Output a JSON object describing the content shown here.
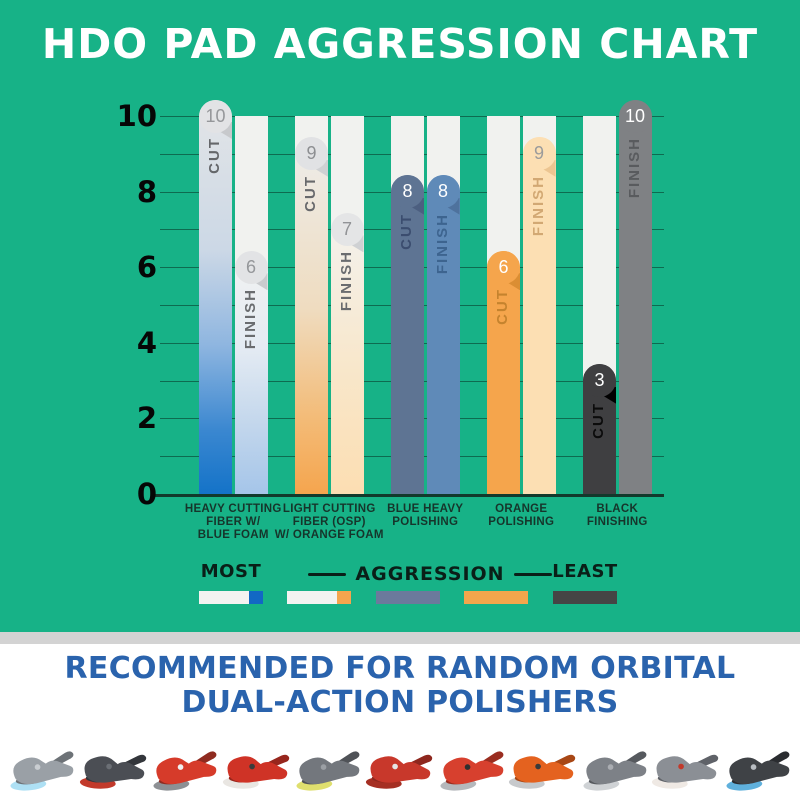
{
  "title": "HDO PAD AGGRESSION CHART",
  "chart_data": {
    "type": "bar",
    "categories": [
      [
        "HEAVY CUTTING",
        "FIBER W/",
        "BLUE FOAM"
      ],
      [
        "LIGHT CUTTING",
        "FIBER (OSP)",
        "W/ ORANGE FOAM"
      ],
      [
        "BLUE HEAVY",
        "POLISHING"
      ],
      [
        "ORANGE",
        "POLISHING"
      ],
      [
        "BLACK",
        "FINISHING"
      ]
    ],
    "series": [
      {
        "name": "CUT",
        "values": [
          10,
          9,
          8,
          6,
          3
        ]
      },
      {
        "name": "FINISH",
        "values": [
          6,
          7,
          8,
          9,
          10
        ]
      }
    ],
    "ylim": [
      0,
      10
    ],
    "yticks": [
      0,
      2,
      4,
      6,
      8,
      10
    ],
    "gridline_step": 1,
    "grid": true,
    "legend_position": "bottom",
    "bar_styles": [
      {
        "cut": {
          "gradient": [
            "#e3e5e7 0%",
            "#ccd8e6 38%",
            "#8fb6e0 62%",
            "#3a87d0 84%",
            "#1473c8 100%"
          ],
          "bubble_bg": "#e2e3e5",
          "bubble_text": "#95979a",
          "fold": "#c7c9cc",
          "label_color": "#65676a"
        },
        "finish": {
          "gradient": [
            "#f2f2f1 0%",
            "#e4ebf3 40%",
            "#c2d6ec 72%",
            "#a5c5e9 100%"
          ],
          "bubble_bg": "#e2e3e5",
          "bubble_text": "#95979a",
          "fold": "#c9cbce",
          "label_color": "#6a6c6f"
        }
      },
      {
        "cut": {
          "gradient": [
            "#ededeb 0%",
            "#efdcc0 48%",
            "#f3bc79 78%",
            "#f5a54e 100%"
          ],
          "bubble_bg": "#e1e2e4",
          "bubble_text": "#8d8f92",
          "fold": "#cfd1d3",
          "label_color": "#68696c"
        },
        "finish": {
          "gradient": [
            "#f3f2ef 0%",
            "#f8e7cb 55%",
            "#fcdeb2 100%"
          ],
          "bubble_bg": "#e4e5e6",
          "bubble_text": "#919396",
          "fold": "#cfd1d3",
          "label_color": "#6a6c6f"
        }
      },
      {
        "cut": {
          "fill": "#5e7493",
          "bubble_text": "#ffffff",
          "fold": "#4c5f80",
          "label_color": "#3b4d6f"
        },
        "finish": {
          "fill": "#5f8ab8",
          "bubble_text": "#ffffff",
          "fold": "#4e729d",
          "label_color": "#3d648f"
        }
      },
      {
        "cut": {
          "fill": "#f5a54c",
          "bubble_text": "#ffffff",
          "fold": "#db8e33",
          "label_color": "#c5832e"
        },
        "finish": {
          "fill": "#fcdfb3",
          "bubble_text": "#9b9b9b",
          "fold": "#ecc591",
          "label_color": "#d2a873"
        }
      },
      {
        "cut": {
          "fill": "#3f3f41",
          "bubble_text": "#ffffff",
          "fold": "#000000",
          "label_color": "#0b0b0b"
        },
        "finish": {
          "fill": "#7f8184",
          "bubble_text": "#ffffff",
          "fold": "",
          "label_color": "#595b5e"
        }
      }
    ]
  },
  "legend": {
    "most_label": "MOST",
    "aggression_label": "AGGRESSION",
    "least_label": "LEAST",
    "swatches": [
      {
        "base": "#f3f3f1",
        "tip": "#1268c4"
      },
      {
        "base": "#f3f3f1",
        "tip": "#f5a54e"
      },
      {
        "base": "#6b7a9c",
        "tip": ""
      },
      {
        "base": "#f3a64c",
        "tip": ""
      },
      {
        "base": "#454545",
        "tip": ""
      }
    ]
  },
  "footer": {
    "line1": "RECOMMENDED FOR RANDOM ORBITAL",
    "line2": "DUAL-ACTION POLISHERS",
    "text_color": "#2a63ad"
  },
  "colors": {
    "background_green": "#17b287",
    "gridline": "#0e6b50",
    "baseline": "#123a2c",
    "track": "#f1f2ef",
    "divider": "#d3d3d3",
    "title_text": "#ffffff",
    "axis_text": "#060606"
  },
  "polishers": [
    {
      "body": "#9aa0a6",
      "dark": "#6d7277",
      "pad": "#aee0f4",
      "accent": "#c9cdd1"
    },
    {
      "body": "#4b4e54",
      "dark": "#33363b",
      "pad": "#c23a2b",
      "accent": "#6b6f75"
    },
    {
      "body": "#d63b2a",
      "dark": "#8f2b20",
      "pad": "#8d9094",
      "accent": "#f0f0f0"
    },
    {
      "body": "#cf3326",
      "dark": "#97261d",
      "pad": "#e9e6e2",
      "accent": "#3c3c3c"
    },
    {
      "body": "#73777d",
      "dark": "#4f5257",
      "pad": "#dfdf6e",
      "accent": "#9b9fa4"
    },
    {
      "body": "#c8382b",
      "dark": "#8e271e",
      "pad": "#a52f23",
      "accent": "#e5e5e5"
    },
    {
      "body": "#d7402e",
      "dark": "#9a2d20",
      "pad": "#b5b8bc",
      "accent": "#2f2f2f"
    },
    {
      "body": "#e4621f",
      "dark": "#a84715",
      "pad": "#c7c9cc",
      "accent": "#3a3a3a"
    },
    {
      "body": "#7d8187",
      "dark": "#56595e",
      "pad": "#cfd2d5",
      "accent": "#aaadb2"
    },
    {
      "body": "#8b8f95",
      "dark": "#5f6268",
      "pad": "#efe9e4",
      "accent": "#c23a2b"
    },
    {
      "body": "#3f4246",
      "dark": "#2a2c30",
      "pad": "#5fb0dc",
      "accent": "#b9bdc2"
    }
  ]
}
